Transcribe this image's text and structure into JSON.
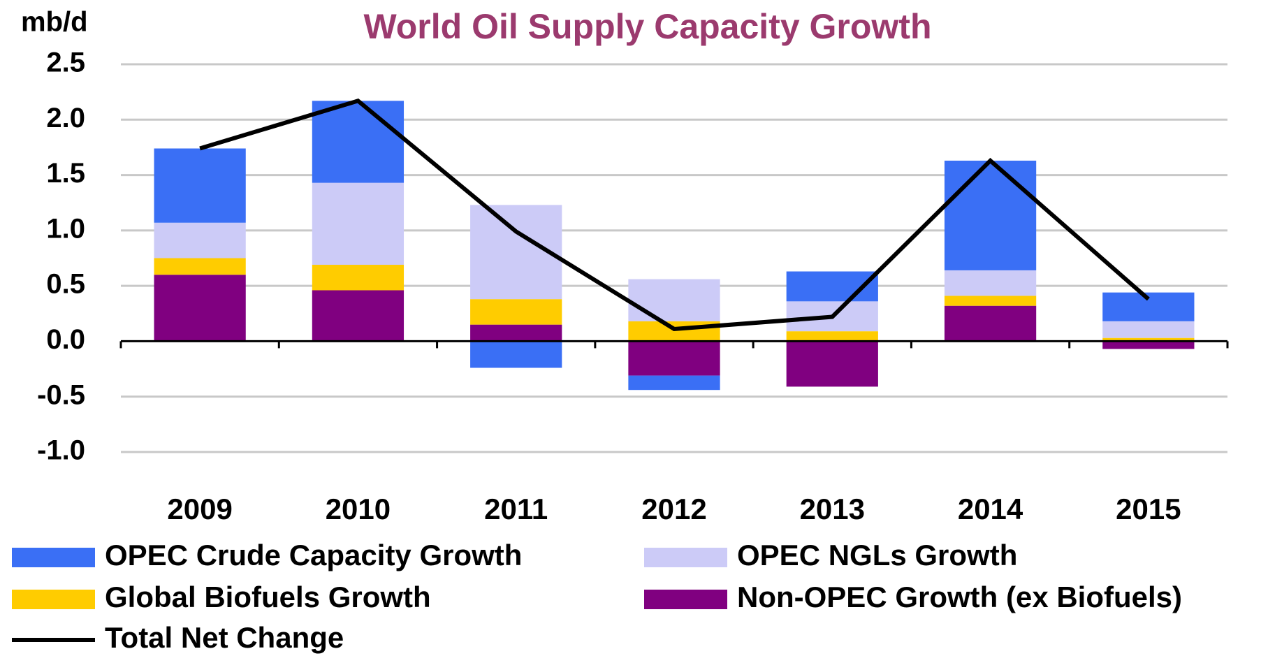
{
  "chart_data": {
    "type": "bar",
    "stacked": true,
    "title": "World Oil Supply Capacity  Growth",
    "ylabel": "mb/d",
    "categories": [
      "2009",
      "2010",
      "2011",
      "2012",
      "2013",
      "2014",
      "2015"
    ],
    "series": [
      {
        "name": "Non-OPEC Growth (ex Biofuels)",
        "color": "#800080",
        "values": [
          0.6,
          0.46,
          0.15,
          -0.31,
          -0.41,
          0.32,
          -0.07
        ]
      },
      {
        "name": "Global Biofuels Growth",
        "color": "#ffcc00",
        "values": [
          0.15,
          0.23,
          0.23,
          0.18,
          0.09,
          0.09,
          0.03
        ]
      },
      {
        "name": "OPEC NGLs Growth",
        "color": "#cccbf7",
        "values": [
          0.32,
          0.74,
          0.85,
          0.38,
          0.27,
          0.23,
          0.15
        ]
      },
      {
        "name": "OPEC Crude Capacity Growth",
        "color": "#3a6ff5",
        "values": [
          0.67,
          0.74,
          -0.24,
          -0.13,
          0.27,
          0.99,
          0.26
        ]
      },
      {
        "name": "Total Net Change",
        "type": "line",
        "color": "#000000",
        "values": [
          1.74,
          2.17,
          0.99,
          0.11,
          0.22,
          1.63,
          0.38
        ]
      }
    ],
    "ylim": [
      -1.0,
      2.5
    ],
    "yticks": [
      {
        "value": -1,
        "label": "-1.0"
      },
      -0.5,
      {
        "value": 0,
        "label": "0.0"
      },
      0.5,
      {
        "value": 1,
        "label": "1.0"
      },
      1.5,
      {
        "value": 2,
        "label": "2.0"
      },
      2.5
    ],
    "grid": true
  }
}
